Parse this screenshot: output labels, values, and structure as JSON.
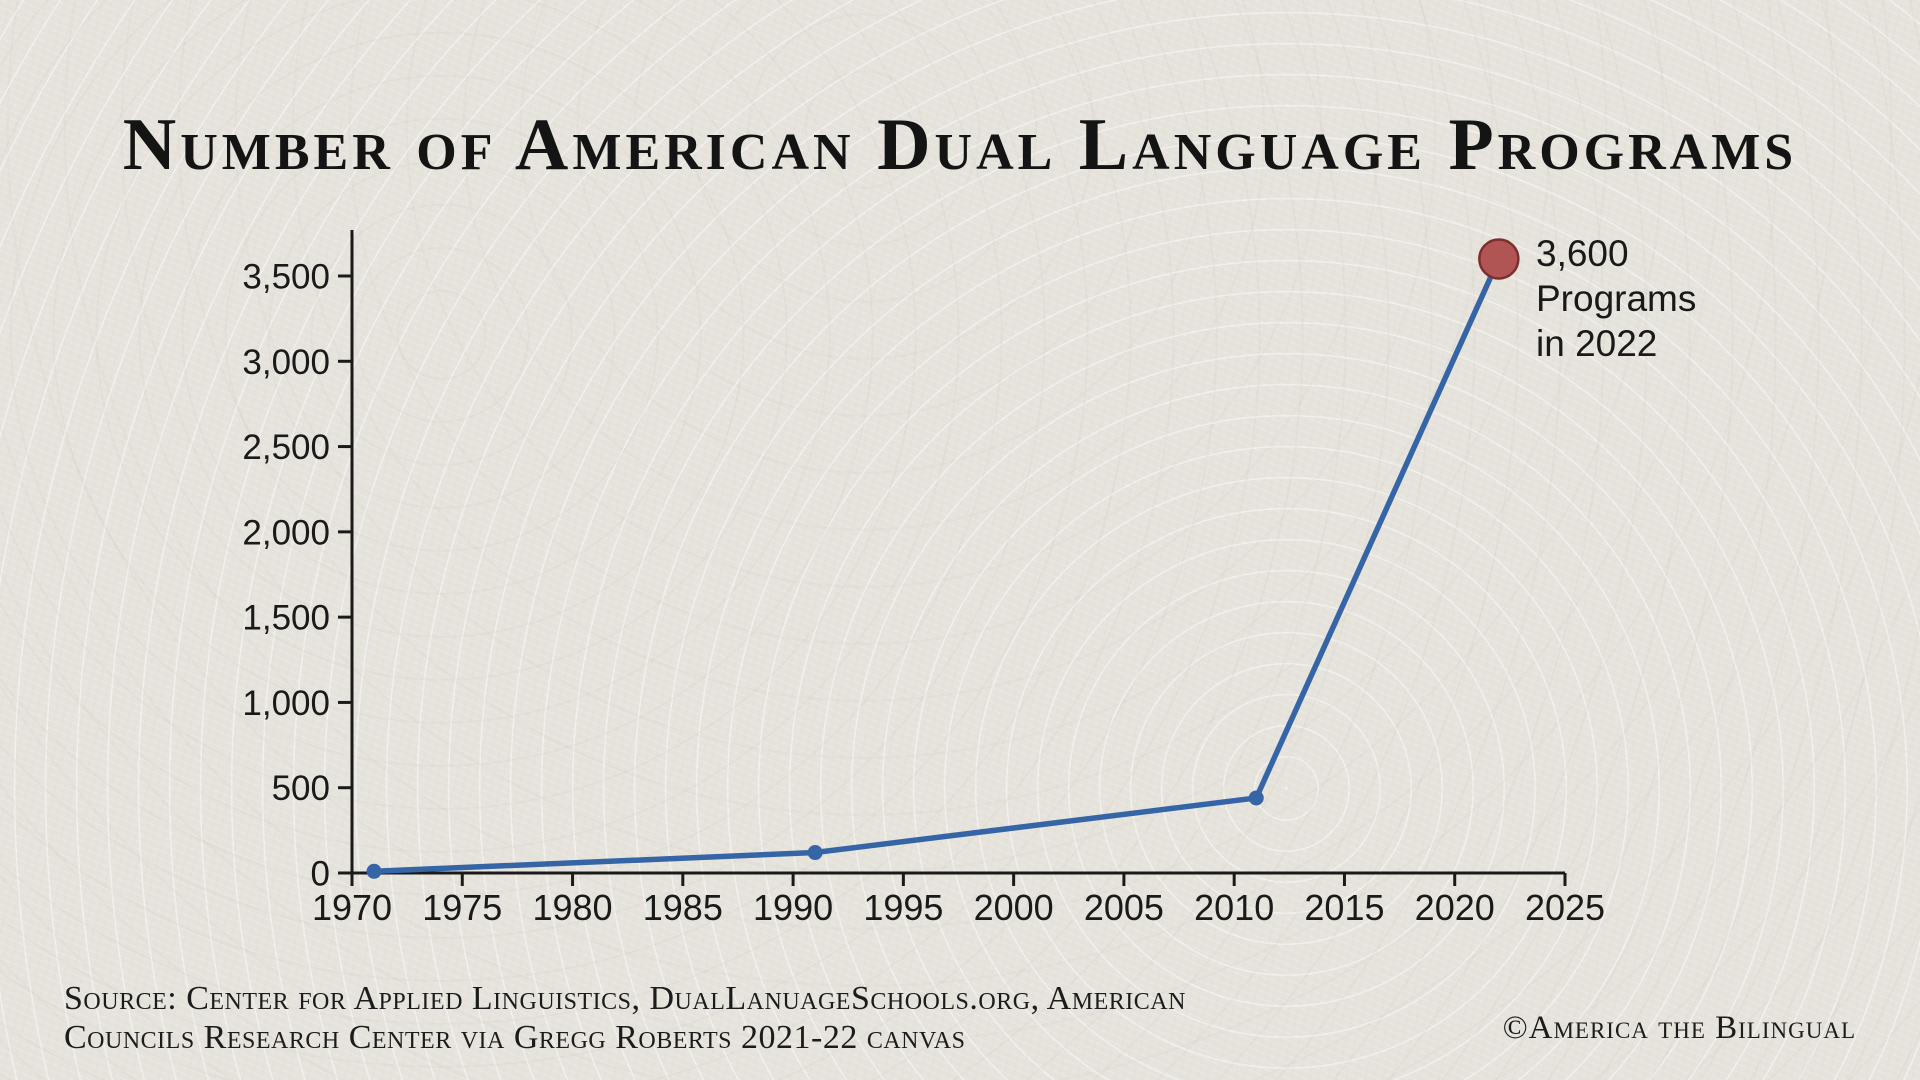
{
  "header": {
    "title": "Number of American Dual Language Programs"
  },
  "annotation": {
    "lines": [
      "3,600",
      "Programs",
      "in 2022"
    ]
  },
  "footer": {
    "source_line1": "Source: Center for Applied Linguistics, DualLanuageSchools.org, American",
    "source_line2": "Councils Research Center via Gregg Roberts 2021-22 canvas",
    "copyright": "©America the Bilingual"
  },
  "colors": {
    "background": "#e6e3dc",
    "ink": "#1a1a1a",
    "line_blue": "#3565a6",
    "highlight_red": "#b15454",
    "highlight_red_border": "#7d2e2e"
  },
  "chart_data": {
    "type": "line",
    "title": "Number of American Dual Language Programs",
    "series_name": "Dual language programs",
    "x": [
      1971,
      1991,
      2011,
      2022
    ],
    "values": [
      10,
      120,
      440,
      3600
    ],
    "x_ticks": [
      1970,
      1975,
      1980,
      1985,
      1990,
      1995,
      2000,
      2005,
      2010,
      2015,
      2020,
      2025
    ],
    "y_ticks": [
      0,
      500,
      1000,
      1500,
      2000,
      2500,
      3000,
      3500
    ],
    "xlim": [
      1970,
      2025
    ],
    "ylim": [
      0,
      3600
    ],
    "xlabel": "",
    "ylabel": "",
    "grid": false,
    "legend": "none",
    "line_color": "#3565a6",
    "point_color": "#3565a6",
    "highlight": {
      "x": 2022,
      "y": 3600,
      "label": "3,600 Programs in 2022",
      "fill": "#b15454",
      "stroke": "#7d2e2e"
    }
  }
}
